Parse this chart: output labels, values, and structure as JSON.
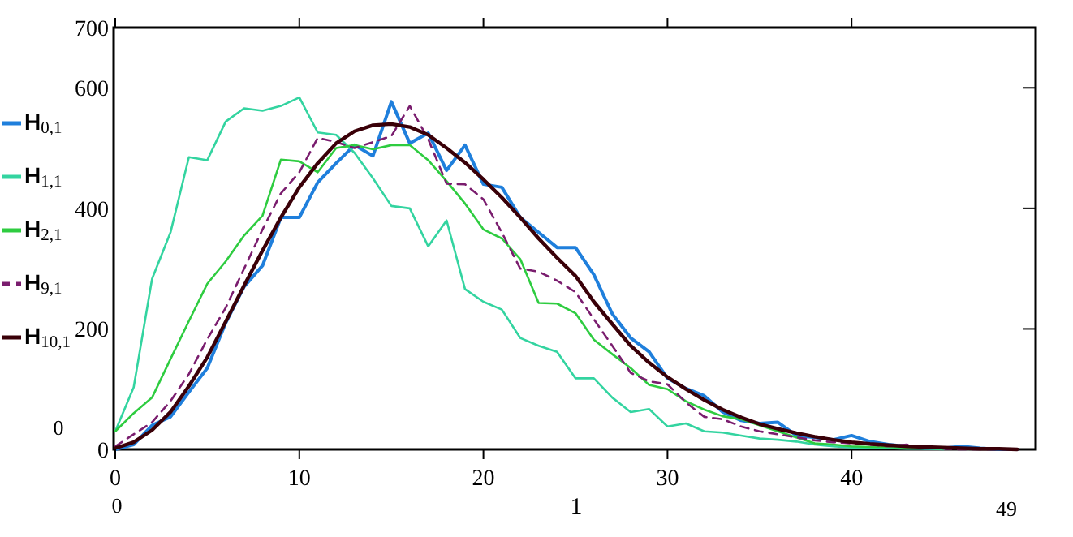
{
  "chart_data": {
    "type": "line",
    "xlabel": "1",
    "xlim": [
      0,
      50
    ],
    "xticks": [
      0,
      10,
      20,
      30,
      40
    ],
    "ylim": [
      0,
      700
    ],
    "yticks": [
      0,
      200,
      400,
      600,
      700
    ],
    "legend": "left",
    "grid": false,
    "marker": "none",
    "x": [
      0,
      1,
      2,
      3,
      4,
      5,
      6,
      7,
      8,
      9,
      10,
      11,
      12,
      13,
      14,
      15,
      16,
      17,
      18,
      19,
      20,
      21,
      22,
      23,
      24,
      25,
      26,
      27,
      28,
      29,
      30,
      31,
      32,
      33,
      34,
      35,
      36,
      37,
      38,
      39,
      40,
      41,
      42,
      43,
      44,
      45,
      46,
      47,
      48,
      49
    ],
    "series": [
      {
        "name": "H$_{0,1}$",
        "color": "#1f7fdc",
        "line_style": "solid",
        "values": [
          0,
          8,
          40,
          54,
          95,
          135,
          210,
          270,
          305,
          385,
          385,
          443,
          475,
          505,
          487,
          577,
          508,
          525,
          463,
          505,
          440,
          435,
          385,
          360,
          335,
          335,
          290,
          225,
          185,
          162,
          118,
          101,
          89,
          62,
          48,
          43,
          45,
          23,
          20,
          16,
          23,
          13,
          8,
          5,
          2,
          2,
          5,
          2,
          0,
          0
        ]
      },
      {
        "name": "H$_{1,1}$",
        "color": "#33d4a0",
        "line_style": "solid",
        "values": [
          30,
          103,
          283,
          360,
          485,
          480,
          544,
          566,
          562,
          570,
          584,
          526,
          522,
          492,
          450,
          404,
          400,
          337,
          380,
          266,
          245,
          232,
          185,
          172,
          162,
          118,
          118,
          86,
          62,
          67,
          38,
          43,
          30,
          28,
          23,
          18,
          16,
          13,
          8,
          5,
          3,
          2,
          2,
          1,
          1,
          0,
          null,
          null,
          null,
          null
        ]
      },
      {
        "name": "H$_{2,1}$",
        "color": "#2ecc40",
        "line_style": "solid",
        "values": [
          30,
          60,
          86,
          150,
          213,
          275,
          312,
          355,
          388,
          481,
          478,
          460,
          500,
          505,
          498,
          505,
          505,
          480,
          445,
          408,
          365,
          350,
          316,
          243,
          242,
          226,
          182,
          158,
          135,
          107,
          100,
          80,
          66,
          55,
          50,
          40,
          30,
          20,
          10,
          8,
          5,
          4,
          4,
          3,
          2,
          1,
          null,
          null,
          null,
          null
        ]
      },
      {
        "name": "H$_{9,1}$",
        "color": "#7a1d6e",
        "line_style": "dashed",
        "values": [
          5,
          25,
          45,
          80,
          125,
          183,
          235,
          300,
          365,
          425,
          460,
          517,
          510,
          500,
          510,
          520,
          570,
          515,
          441,
          440,
          415,
          360,
          300,
          295,
          280,
          261,
          216,
          172,
          127,
          113,
          108,
          78,
          54,
          50,
          38,
          30,
          25,
          20,
          15,
          12,
          10,
          8,
          5,
          8,
          3,
          1,
          0,
          0,
          0,
          0
        ]
      },
      {
        "name": "H$_{10,1}$",
        "color": "#3a0008",
        "line_style": "solid",
        "values": [
          2,
          12,
          32,
          62,
          105,
          153,
          212,
          272,
          330,
          385,
          435,
          475,
          508,
          528,
          538,
          540,
          535,
          522,
          500,
          476,
          448,
          418,
          385,
          350,
          318,
          288,
          245,
          208,
          172,
          144,
          120,
          100,
          82,
          66,
          53,
          42,
          34,
          27,
          21,
          16,
          12,
          9,
          7,
          5,
          4,
          3,
          2,
          1,
          1,
          0
        ]
      }
    ],
    "annotations": [
      "0",
      "0",
      "49"
    ]
  }
}
